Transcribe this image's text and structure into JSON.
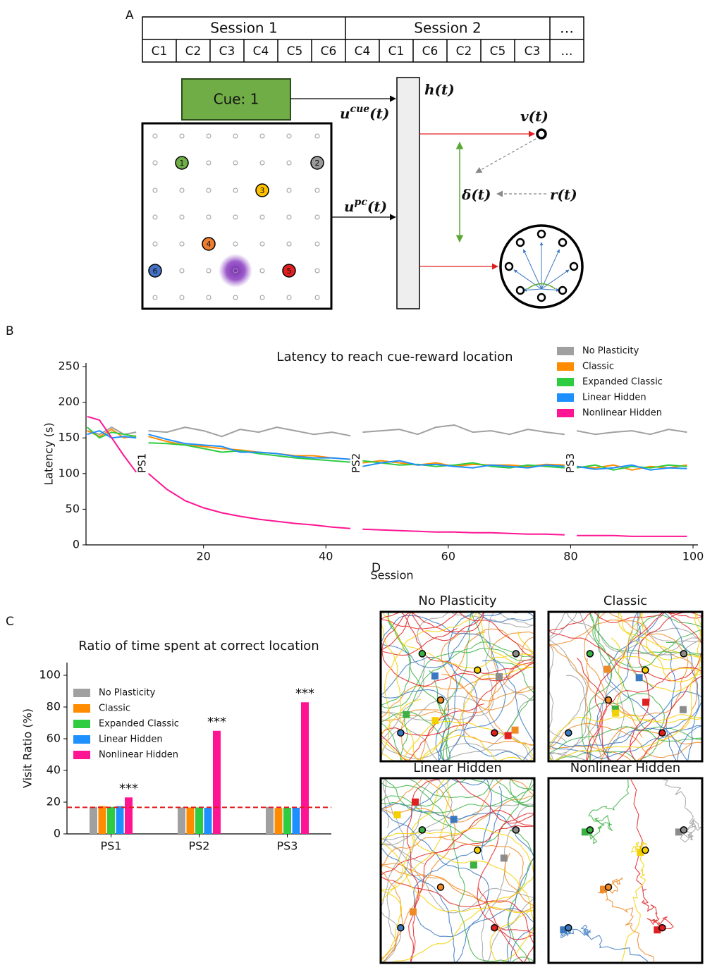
{
  "panel_labels": [
    "A",
    "B",
    "C",
    "D"
  ],
  "diagram": {
    "session_headers": [
      "Session 1",
      "Session 2",
      "…"
    ],
    "cues": [
      "C1",
      "C2",
      "C3",
      "C4",
      "C5",
      "C6",
      "C4",
      "C1",
      "C6",
      "C2",
      "C5",
      "C3",
      "…"
    ],
    "cue_box": "Cue: 1",
    "locations": [
      "1",
      "2",
      "3",
      "4",
      "5",
      "6"
    ],
    "labels": {
      "h": "h(t)",
      "v": "v(t)",
      "delta": "δ(t)",
      "r": "r(t)",
      "u_cue": {
        "base": "u",
        "sup": "cue",
        "arg": "(t)"
      },
      "u_pc": {
        "base": "u",
        "sup": "pc",
        "arg": "(t)"
      }
    }
  },
  "chart_data": [
    {
      "type": "line",
      "title": "Latency to reach cue-reward location",
      "x_label": "Session",
      "y_label": "Latency (s)",
      "x": [
        1,
        3,
        5,
        7,
        9,
        10,
        11,
        14,
        17,
        20,
        23,
        26,
        29,
        32,
        35,
        38,
        41,
        44,
        45,
        46,
        49,
        52,
        55,
        58,
        61,
        64,
        67,
        70,
        73,
        76,
        79,
        80,
        81,
        84,
        87,
        90,
        93,
        96,
        99
      ],
      "series": [
        {
          "name": "No Plasticity",
          "color": "#a0a0a0",
          "values": [
            160,
            155,
            165,
            155,
            158,
            null,
            160,
            158,
            165,
            160,
            152,
            162,
            158,
            165,
            160,
            155,
            158,
            153,
            null,
            158,
            160,
            162,
            155,
            165,
            168,
            158,
            160,
            155,
            162,
            158,
            155,
            null,
            160,
            155,
            158,
            160,
            155,
            162,
            158
          ]
        },
        {
          "name": "Classic",
          "color": "#ff8c00",
          "values": [
            160,
            152,
            162,
            150,
            153,
            null,
            152,
            145,
            140,
            138,
            135,
            133,
            130,
            128,
            125,
            125,
            122,
            120,
            null,
            115,
            118,
            115,
            112,
            115,
            110,
            113,
            112,
            112,
            110,
            113,
            112,
            null,
            110,
            108,
            112,
            105,
            110,
            108,
            112
          ]
        },
        {
          "name": "Expanded Classic",
          "color": "#2ecc40",
          "values": [
            165,
            150,
            158,
            155,
            152,
            null,
            143,
            142,
            140,
            135,
            130,
            132,
            128,
            125,
            122,
            120,
            118,
            116,
            null,
            118,
            115,
            112,
            113,
            110,
            112,
            115,
            110,
            108,
            112,
            110,
            108,
            null,
            108,
            112,
            105,
            110,
            108,
            112,
            110
          ]
        },
        {
          "name": "Linear Hidden",
          "color": "#1e8fff",
          "values": [
            155,
            160,
            150,
            152,
            150,
            null,
            155,
            148,
            142,
            140,
            138,
            130,
            130,
            128,
            124,
            122,
            122,
            120,
            null,
            110,
            115,
            118,
            112,
            113,
            110,
            108,
            112,
            110,
            108,
            112,
            110,
            null,
            110,
            106,
            108,
            112,
            105,
            108,
            107
          ]
        },
        {
          "name": "Nonlinear Hidden",
          "color": "#ff1493",
          "values": [
            180,
            175,
            150,
            125,
            102,
            null,
            100,
            78,
            62,
            52,
            45,
            40,
            36,
            33,
            30,
            28,
            25,
            23,
            null,
            22,
            21,
            20,
            19,
            18,
            18,
            17,
            17,
            16,
            15,
            15,
            14,
            null,
            13,
            13,
            13,
            12,
            12,
            12,
            12
          ]
        }
      ],
      "annotations": [
        {
          "text": "PS1",
          "x": 10
        },
        {
          "text": "PS2",
          "x": 45
        },
        {
          "text": "PS3",
          "x": 80
        }
      ],
      "xlim": [
        0.8,
        100.8
      ],
      "ylim": [
        0,
        255
      ],
      "xticks": [
        20,
        40,
        60,
        80,
        100
      ],
      "yticks": [
        0,
        50,
        100,
        150,
        200,
        250
      ],
      "legend": "upper right"
    },
    {
      "type": "bar",
      "title": "Ratio of time spent at correct location",
      "y_label": "Visit Ratio (%)",
      "categories": [
        "PS1",
        "PS2",
        "PS3"
      ],
      "series": [
        {
          "name": "No Plasticity",
          "color": "#a0a0a0",
          "values": [
            17,
            16.7,
            17
          ]
        },
        {
          "name": "Classic",
          "color": "#ff8c00",
          "values": [
            17.5,
            16.7,
            16.3
          ]
        },
        {
          "name": "Expanded Classic",
          "color": "#2ecc40",
          "values": [
            17,
            16.7,
            16.5
          ]
        },
        {
          "name": "Linear Hidden",
          "color": "#1e8fff",
          "values": [
            17.5,
            16.5,
            16.5
          ]
        },
        {
          "name": "Nonlinear Hidden",
          "color": "#ff1493",
          "values": [
            23,
            65,
            83
          ]
        }
      ],
      "significance": [
        "***",
        "***",
        "***"
      ],
      "reference_line": {
        "value": 16.7,
        "color": "#e31a1c"
      },
      "ylim": [
        0,
        108
      ],
      "yticks": [
        0,
        20,
        40,
        60,
        80,
        100
      ],
      "legend": "upper left"
    }
  ],
  "trajectories": {
    "titles": [
      "No Plasticity",
      "Classic",
      "Linear Hidden",
      "Nonlinear Hidden"
    ]
  }
}
